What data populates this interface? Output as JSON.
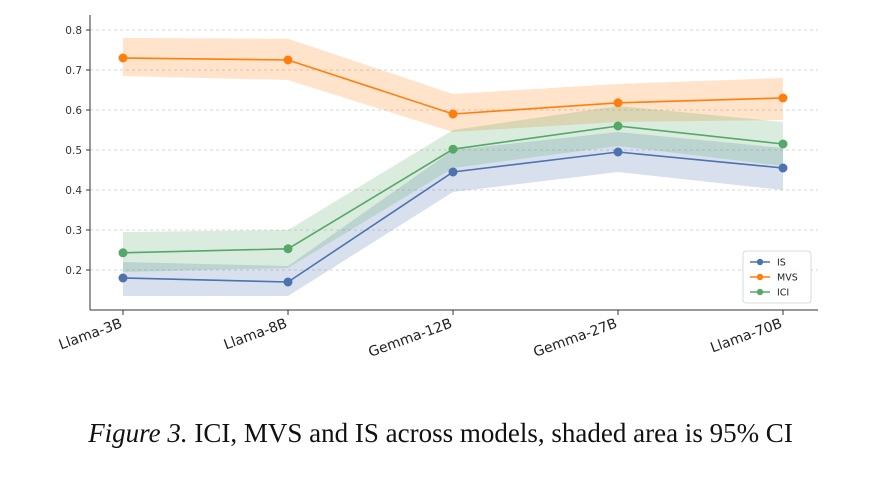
{
  "caption": {
    "label": "Figure 3.",
    "text": "ICI, MVS and IS across models, shaded area is 95% CI"
  },
  "chart_data": {
    "type": "line",
    "categories": [
      "Llama-3B",
      "Llama-8B",
      "Gemma-12B",
      "Gemma-27B",
      "Llama-70B"
    ],
    "ylim": [
      0.1,
      0.8
    ],
    "yticks": [
      0.2,
      0.3,
      0.4,
      0.5,
      0.6,
      0.7,
      0.8
    ],
    "ytick_labels": [
      "0.2",
      "0.3",
      "0.4",
      "0.5",
      "0.6",
      "0.7",
      "0.8"
    ],
    "grid": "y-dashed",
    "legend_position": "bottom-right",
    "series": [
      {
        "name": "IS",
        "color": "#4c72b0",
        "values": [
          0.18,
          0.17,
          0.445,
          0.495,
          0.455
        ],
        "ci_low": [
          0.135,
          0.135,
          0.395,
          0.445,
          0.4
        ],
        "ci_high": [
          0.22,
          0.21,
          0.5,
          0.545,
          0.505
        ]
      },
      {
        "name": "MVS",
        "color": "#ff7f0e",
        "values": [
          0.73,
          0.725,
          0.59,
          0.618,
          0.63
        ],
        "ci_low": [
          0.685,
          0.675,
          0.545,
          0.57,
          0.575
        ],
        "ci_high": [
          0.78,
          0.778,
          0.64,
          0.665,
          0.68
        ]
      },
      {
        "name": "ICI",
        "color": "#55a868",
        "values": [
          0.243,
          0.253,
          0.502,
          0.56,
          0.515
        ],
        "ci_low": [
          0.195,
          0.205,
          0.455,
          0.51,
          0.46
        ],
        "ci_high": [
          0.295,
          0.3,
          0.55,
          0.61,
          0.57
        ]
      }
    ]
  }
}
